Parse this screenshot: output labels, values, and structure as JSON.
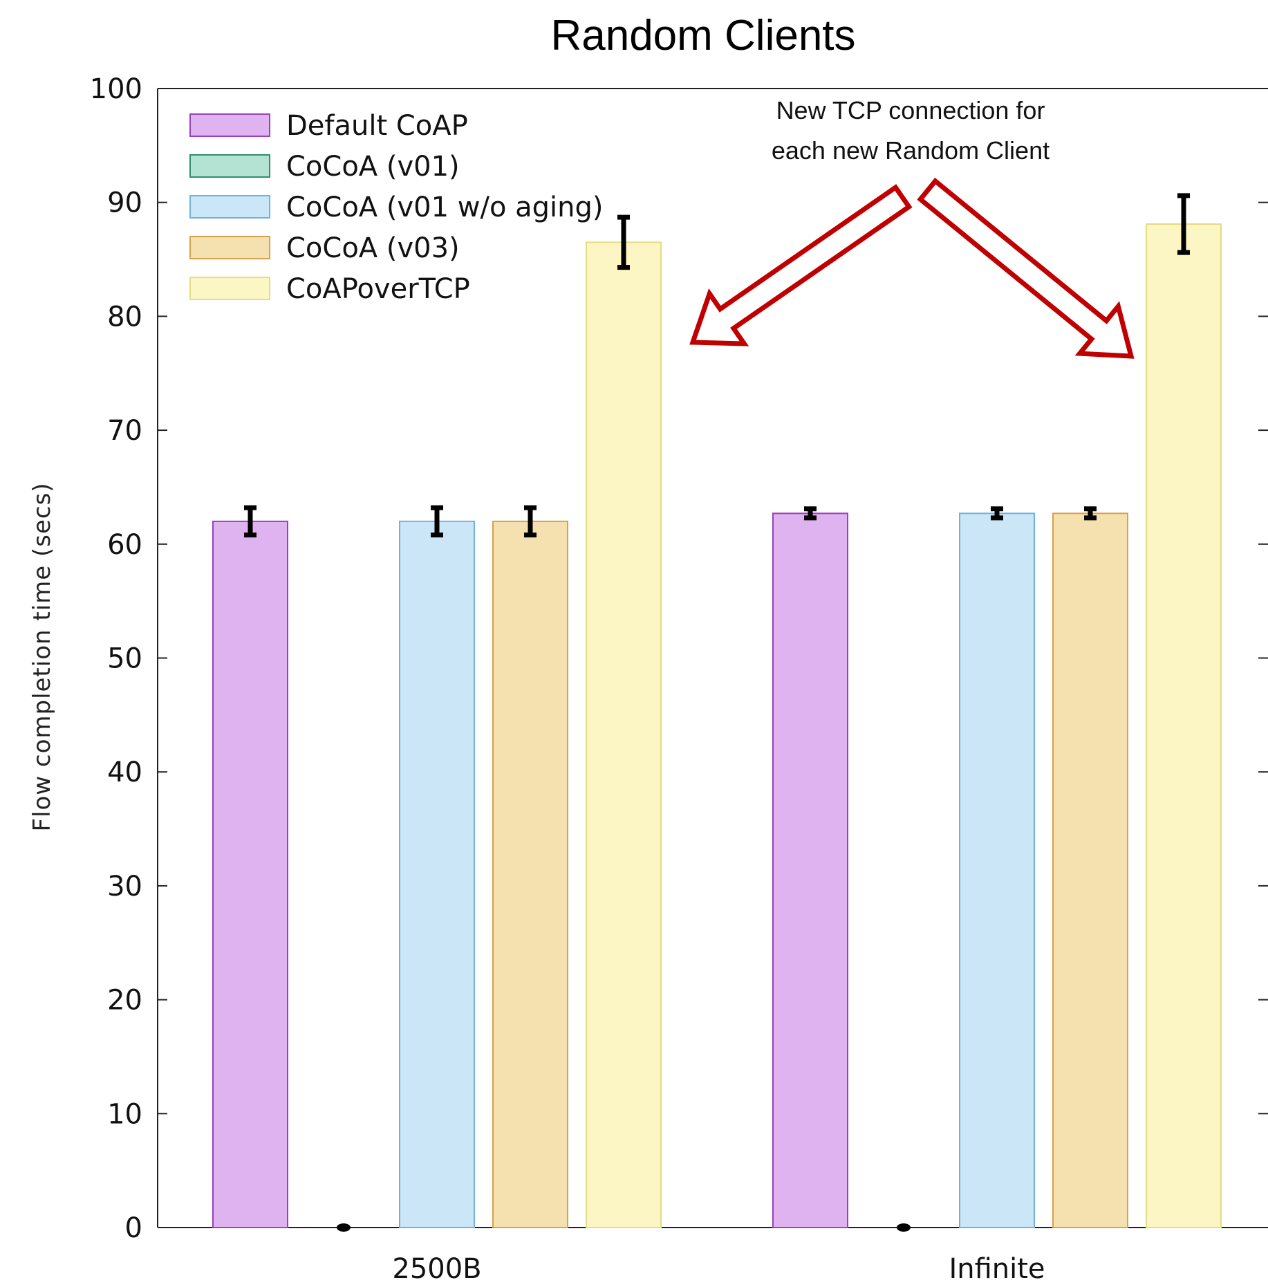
{
  "chart_data": {
    "type": "bar",
    "title": "Random Clients",
    "xlabel": "",
    "ylabel": "Flow completion time (secs)",
    "ylim": [
      0,
      100
    ],
    "yticks": [
      "0",
      "10",
      "20",
      "30",
      "40",
      "50",
      "60",
      "70",
      "80",
      "90",
      "100"
    ],
    "categories": [
      "2500B",
      "Infinite"
    ],
    "grid": false,
    "legend_position": "top-left",
    "series": [
      {
        "name": "Default CoAP",
        "color": "#dfb3ef",
        "edge": "#9b3fbf",
        "values": [
          62,
          62.7
        ],
        "err": [
          1.2,
          0.4
        ]
      },
      {
        "name": "CoCoA (v01)",
        "color": "#b5e3d3",
        "edge": "#2f8f6f",
        "values": [
          0,
          0
        ],
        "err": [
          0,
          0
        ]
      },
      {
        "name": "CoCoA (v01 w/o aging)",
        "color": "#cbe6f7",
        "edge": "#6fb3dd",
        "values": [
          62,
          62.7
        ],
        "err": [
          1.2,
          0.4
        ]
      },
      {
        "name": "CoCoA (v03)",
        "color": "#f5e0b0",
        "edge": "#d9a14a",
        "values": [
          62,
          62.7
        ],
        "err": [
          1.2,
          0.4
        ]
      },
      {
        "name": "CoAPoverTCP",
        "color": "#fbf6c4",
        "edge": "#e6dc80",
        "values": [
          86.5,
          88.1
        ],
        "err": [
          2.2,
          2.5
        ]
      }
    ],
    "annotation": {
      "lines": [
        "New TCP connection for",
        "each new Random Client"
      ],
      "arrow_color": "#c00000"
    }
  }
}
